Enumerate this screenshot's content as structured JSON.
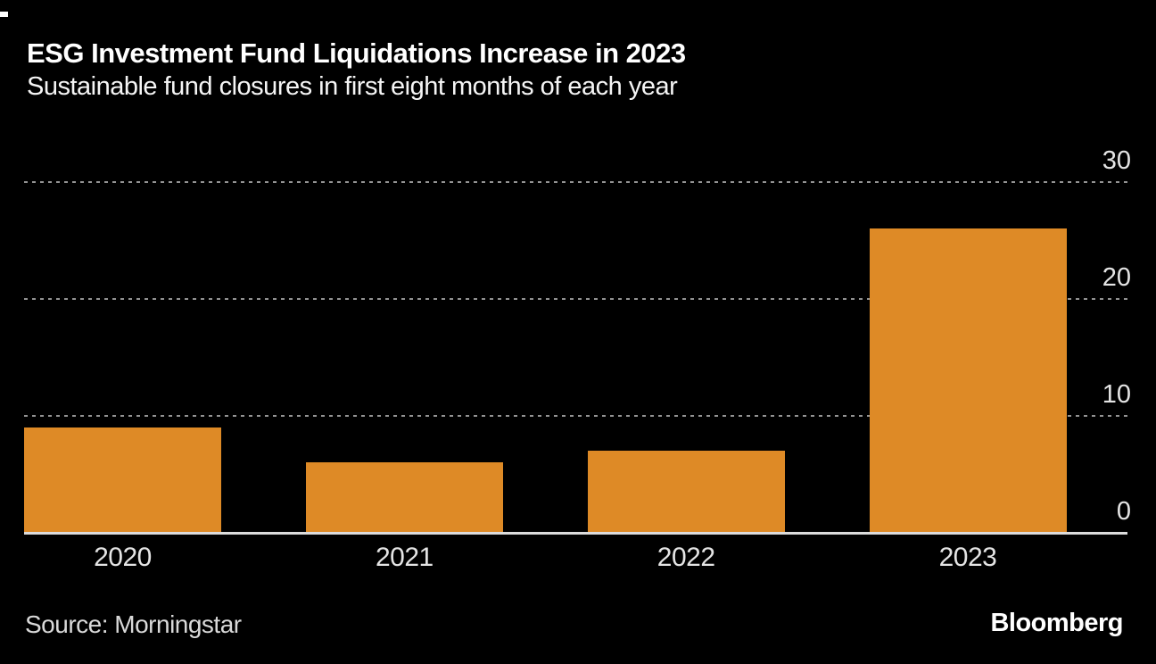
{
  "page": {
    "background": "#000000"
  },
  "chart_data": {
    "type": "bar",
    "title": "ESG Investment Fund Liquidations Increase in 2023",
    "subtitle": "Sustainable fund closures in first eight months of each year",
    "categories": [
      "2020",
      "2021",
      "2022",
      "2023"
    ],
    "values": [
      9,
      6,
      7,
      26
    ],
    "xlabel": "",
    "ylabel": "",
    "ylim": [
      0,
      30
    ],
    "yticks": [
      0,
      10,
      20,
      30
    ],
    "ytick_side": "right",
    "grid": "horizontal-dotted",
    "legend": "none",
    "bar_color": "#de8a26",
    "gridline_color": "#939393",
    "axis_line_color": "#dcdcdc",
    "tick_label_color": "#e4e4e4"
  },
  "footer": {
    "source": "Source: Morningstar",
    "brand": "Bloomberg"
  }
}
